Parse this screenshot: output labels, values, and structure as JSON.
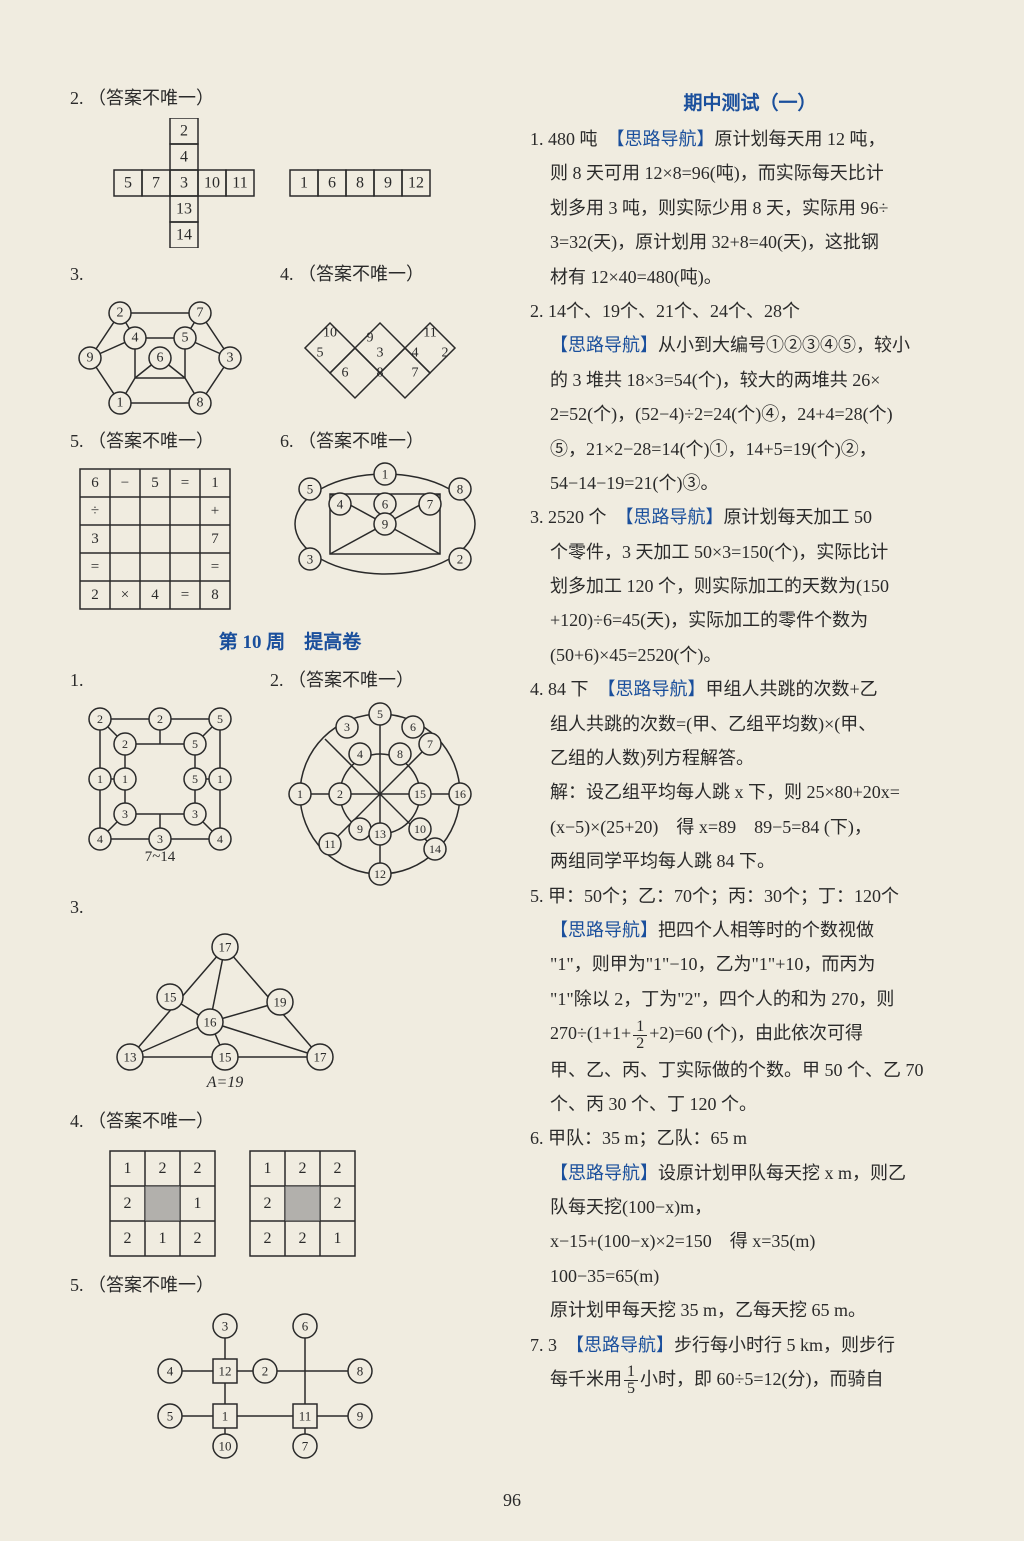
{
  "pageNumber": "96",
  "left": {
    "q2": {
      "num": "2.",
      "note": "（答案不唯一）"
    },
    "cross": {
      "cells": [
        "2",
        "4",
        "5",
        "7",
        "3",
        "10",
        "11",
        "13",
        "14"
      ],
      "line": [
        "1",
        "6",
        "8",
        "9",
        "12"
      ]
    },
    "q3": {
      "num": "3."
    },
    "hex1": {
      "nodes": [
        "2",
        "7",
        "9",
        "4",
        "5",
        "3",
        "6",
        "1",
        "8"
      ]
    },
    "q4a": {
      "num": "4.",
      "note": "（答案不唯一）"
    },
    "diamonds": {
      "nodes": [
        "10",
        "9",
        "11",
        "5",
        "3",
        "4",
        "2",
        "6",
        "8",
        "7"
      ]
    },
    "q5": {
      "num": "5.",
      "note": "（答案不唯一）"
    },
    "grid5": {
      "rows": [
        [
          "6",
          "−",
          "5",
          "=",
          "1"
        ],
        [
          "÷",
          "",
          "",
          "",
          "+"
        ],
        [
          "3",
          "",
          "",
          "",
          "7"
        ],
        [
          "=",
          "",
          "",
          "",
          "="
        ],
        [
          "2",
          "×",
          "4",
          "=",
          "8"
        ]
      ]
    },
    "q6": {
      "num": "6.",
      "note": "（答案不唯一）"
    },
    "oval6": {
      "nodes": [
        "5",
        "1",
        "8",
        "4",
        "6",
        "7",
        "9",
        "3",
        "2"
      ]
    },
    "week10": "第 10 周　提高卷",
    "w1": {
      "num": "1."
    },
    "oct1": {
      "outer": [
        "2",
        "2",
        "5",
        "2",
        "5",
        "1",
        "1",
        "5",
        "1",
        "3",
        "3",
        "4",
        "3",
        "4",
        "4"
      ],
      "range": "7~14"
    },
    "w2": {
      "num": "2.",
      "note": "（答案不唯一）"
    },
    "wheel": {
      "nodes": [
        "5",
        "3",
        "6",
        "7",
        "4",
        "8",
        "1",
        "2",
        "15",
        "16",
        "9",
        "13",
        "10",
        "11",
        "14",
        "12"
      ]
    },
    "w3": {
      "num": "3."
    },
    "tri": {
      "nodes": [
        "17",
        "15",
        "19",
        "16",
        "13",
        "15",
        "17"
      ],
      "caption": "A=19"
    },
    "w4": {
      "num": "4.",
      "note": "（答案不唯一）"
    },
    "gridA": [
      [
        "1",
        "2",
        "2"
      ],
      [
        "2",
        "",
        "1"
      ],
      [
        "2",
        "1",
        "2"
      ]
    ],
    "gridB": [
      [
        "1",
        "2",
        "2"
      ],
      [
        "2",
        "",
        "2"
      ],
      [
        "2",
        "2",
        "1"
      ]
    ],
    "w5": {
      "num": "5.",
      "note": "（答案不唯一）"
    },
    "ladder": {
      "nodes": [
        "3",
        "6",
        "4",
        "12",
        "2",
        "8",
        "5",
        "1",
        "11",
        "9",
        "10",
        "7"
      ]
    }
  },
  "right": {
    "title": "期中测试（一）",
    "items": [
      {
        "num": "1.",
        "ans": "480 吨",
        "hint": "【思路导航】",
        "body": [
          "原计划每天用 12 吨，",
          "则 8 天可用 12×8=96(吨)，而实际每天比计",
          "划多用 3 吨，则实际少用 8 天，实际用 96÷",
          "3=32(天)，原计划用 32+8=40(天)，这批钢",
          "材有 12×40=480(吨)。"
        ]
      },
      {
        "num": "2.",
        "ans": "14个、19个、21个、24个、28个",
        "hint": "【思路导航】",
        "body": [
          "从小到大编号①②③④⑤，较小",
          "的 3 堆共 18×3=54(个)，较大的两堆共 26×",
          "2=52(个)，(52−4)÷2=24(个)④，24+4=28(个)",
          "⑤，21×2−28=14(个)①，14+5=19(个)②，",
          "54−14−19=21(个)③。"
        ]
      },
      {
        "num": "3.",
        "ans": "2520 个",
        "hint": "【思路导航】",
        "body": [
          "原计划每天加工 50",
          "个零件，3 天加工 50×3=150(个)，实际比计",
          "划多加工 120 个，则实际加工的天数为(150",
          "+120)÷6=45(天)，实际加工的零件个数为",
          "(50+6)×45=2520(个)。"
        ]
      },
      {
        "num": "4.",
        "ans": "84 下",
        "hint": "【思路导航】",
        "body": [
          "甲组人共跳的次数+乙",
          "组人共跳的次数=(甲、乙组平均数)×(甲、",
          "乙组的人数)列方程解答。",
          "解：设乙组平均每人跳 x 下，则 25×80+20x=",
          "(x−5)×(25+20)　得 x=89　89−5=84 (下)，",
          "两组同学平均每人跳 84 下。"
        ]
      },
      {
        "num": "5.",
        "ans": "甲：50个；乙：70个；丙：30个；丁：120个",
        "hint": "【思路导航】",
        "body_pre": [
          "把四个人相等时的个数视做",
          "\"1\"，则甲为\"1\"−10，乙为\"1\"+10，而丙为",
          "\"1\"除以 2，丁为\"2\"，四个人的和为 270，则"
        ],
        "frac_line": {
          "pre": "270÷(1+1+",
          "num": "1",
          "den": "2",
          "post": "+2)=60 (个)，由此依次可得"
        },
        "body_post": [
          "甲、乙、丙、丁实际做的个数。甲 50 个、乙 70",
          "个、丙 30 个、丁 120 个。"
        ]
      },
      {
        "num": "6.",
        "ans": "甲队：35 m；乙队：65 m",
        "hint": "【思路导航】",
        "body": [
          "设原计划甲队每天挖 x m，则乙",
          "队每天挖(100−x)m，",
          "x−15+(100−x)×2=150　得 x=35(m)",
          "100−35=65(m)",
          "原计划甲每天挖 35 m，乙每天挖 65 m。"
        ]
      },
      {
        "num": "7.",
        "ans": "3",
        "hint": "【思路导航】",
        "body_pre": [
          "步行每小时行 5 km，则步行"
        ],
        "frac_line": {
          "pre": "每千米用",
          "num": "1",
          "den": "5",
          "post": "小时，即 60÷5=12(分)，而骑自"
        }
      }
    ]
  },
  "colors": {
    "bg": "#f0ece0",
    "text": "#2a2a2a",
    "blue": "#1a4f9c",
    "stroke": "#2a2a2a"
  }
}
